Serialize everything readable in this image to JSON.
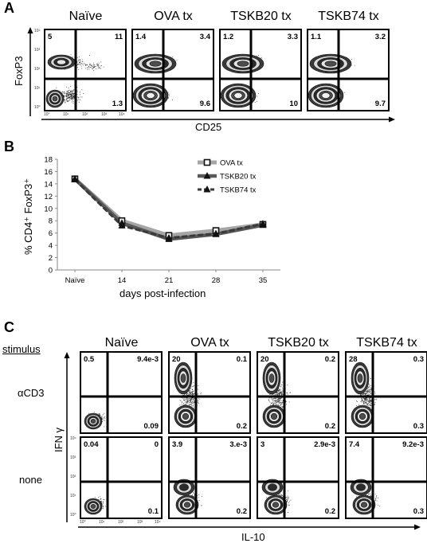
{
  "panelA": {
    "letter": "A",
    "columns": [
      "Naïve",
      "OVA tx",
      "TSKB20 tx",
      "TSKB74 tx"
    ],
    "ylabel": "FoxP3",
    "xlabel": "CD25",
    "quadrants": [
      {
        "tl": "5",
        "tr": "11",
        "br": "1.3"
      },
      {
        "tl": "1.4",
        "tr": "3.4",
        "br": "9.6"
      },
      {
        "tl": "1.2",
        "tr": "3.3",
        "br": "10"
      },
      {
        "tl": "1.1",
        "tr": "3.2",
        "br": "9.7"
      }
    ],
    "yticks": [
      "10⁴",
      "10³",
      "10²",
      "10¹",
      "10⁰"
    ],
    "xticks": [
      "10⁰",
      "10¹",
      "10²",
      "10³",
      "10⁴"
    ]
  },
  "panelB": {
    "letter": "B",
    "ylabel": "% CD4⁺ FoxP3⁺",
    "xlabel": "days post-infection"
  },
  "chart_data": {
    "type": "line",
    "categories": [
      "Naïve",
      "14",
      "21",
      "28",
      "35"
    ],
    "xlabel": "days post-infection",
    "ylabel": "% CD4⁺ FoxP3⁺",
    "ylim": [
      0,
      18
    ],
    "yticks": [
      0,
      2,
      4,
      6,
      8,
      10,
      12,
      14,
      16,
      18
    ],
    "grid": false,
    "legend": "top-right",
    "series": [
      {
        "name": "OVA tx",
        "values": [
          14.8,
          8.0,
          5.6,
          6.4,
          7.4
        ],
        "color": "#a6a6a6",
        "marker": "square"
      },
      {
        "name": "TSKB20 tx",
        "values": [
          14.8,
          7.6,
          5.0,
          5.8,
          7.3
        ],
        "color": "#595959",
        "marker": "triangle"
      },
      {
        "name": "TSKB74 tx",
        "values": [
          14.7,
          7.2,
          5.2,
          5.9,
          7.5
        ],
        "color": "#3a3a3a",
        "marker": "triangle"
      }
    ]
  },
  "panelC": {
    "letter": "C",
    "stimulus_header": "stimulus",
    "columns": [
      "Naïve",
      "OVA tx",
      "TSKB20 tx",
      "TSKB74 tx"
    ],
    "rows": [
      "αCD3",
      "none"
    ],
    "ylabel": "IFN γ",
    "xlabel": "IL-10",
    "quadrants": [
      [
        {
          "tl": "0.5",
          "tr": "9.4e-3",
          "br": "0.09"
        },
        {
          "tl": "20",
          "tr": "0.1",
          "br": "0.2"
        },
        {
          "tl": "20",
          "tr": "0.2",
          "br": "0.2"
        },
        {
          "tl": "28",
          "tr": "0.3",
          "br": "0.3"
        }
      ],
      [
        {
          "tl": "0.04",
          "tr": "0",
          "br": "0.1"
        },
        {
          "tl": "3.9",
          "tr": "3.e-3",
          "br": "0.2"
        },
        {
          "tl": "3",
          "tr": "2.9e-3",
          "br": "0.2"
        },
        {
          "tl": "7.4",
          "tr": "9.2e-3",
          "br": "0.3"
        }
      ]
    ],
    "yticks": [
      "10⁴",
      "10³",
      "10²",
      "10¹",
      "10⁰"
    ],
    "xticks": [
      "10⁰",
      "10¹",
      "10²",
      "10³",
      "10⁴"
    ]
  }
}
